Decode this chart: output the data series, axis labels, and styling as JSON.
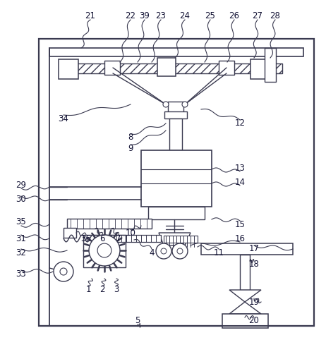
{
  "bg_color": "#ffffff",
  "lc": "#3a3a50",
  "fig_width": 4.62,
  "fig_height": 4.82,
  "dpi": 100
}
